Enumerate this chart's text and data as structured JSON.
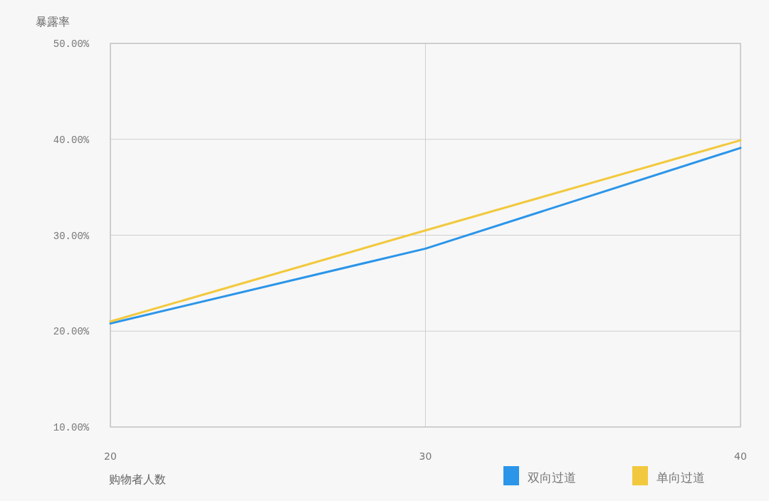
{
  "chart_data": {
    "type": "line",
    "xlabel": "购物者人数",
    "ylabel": "暴露率",
    "x": [
      20,
      30,
      40
    ],
    "xlim": [
      20,
      40
    ],
    "xticks": [
      20,
      30,
      40
    ],
    "ylim": [
      10,
      50
    ],
    "yticks": [
      {
        "value": 10,
        "label": "10.00%"
      },
      {
        "value": 20,
        "label": "20.00%"
      },
      {
        "value": 30,
        "label": "30.00%"
      },
      {
        "value": 40,
        "label": "40.00%"
      },
      {
        "value": 50,
        "label": "50.00%"
      }
    ],
    "grid": true,
    "legend": "bottom",
    "marker": "none",
    "line_style": "solid",
    "series": [
      {
        "name": "双向过道",
        "color": "#2b95e9",
        "values": [
          20.8,
          28.6,
          39.1
        ]
      },
      {
        "name": "单向过道",
        "color": "#f2c93e",
        "values": [
          21.0,
          30.5,
          39.9
        ]
      }
    ]
  }
}
